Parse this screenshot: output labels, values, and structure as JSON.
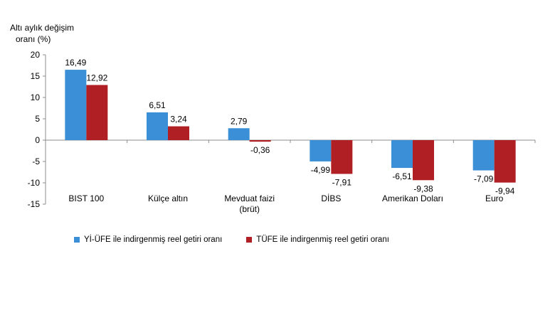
{
  "chart_data": {
    "type": "bar",
    "ylabel_lines": [
      "Altı aylık değişim",
      "oranı (%)"
    ],
    "categories": [
      [
        "BIST 100"
      ],
      [
        "Külçe altın"
      ],
      [
        "Mevduat faizi",
        "(brüt)"
      ],
      [
        "DİBS"
      ],
      [
        "Amerikan Doları"
      ],
      [
        "Euro"
      ]
    ],
    "series": [
      {
        "name": "Yİ-ÜFE ile indirgenmiş reel getiri oranı",
        "color": "#3a8fd6",
        "values": [
          16.49,
          6.51,
          2.79,
          -4.99,
          -6.51,
          -7.09
        ],
        "labels": [
          "16,49",
          "6,51",
          "2,79",
          "-4,99",
          "-6,51",
          "-7,09"
        ]
      },
      {
        "name": "TÜFE ile indirgenmiş reel getiri oranı",
        "color": "#b01f24",
        "values": [
          12.92,
          3.24,
          -0.36,
          -7.91,
          -9.38,
          -9.94
        ],
        "labels": [
          "12,92",
          "3,24",
          "-0,36",
          "-7,91",
          "-9,38",
          "-9,94"
        ]
      }
    ],
    "ylim": [
      -15,
      20
    ],
    "yticks": [
      20,
      15,
      10,
      5,
      0,
      -5,
      -10,
      -15
    ],
    "grid": false,
    "legend_position": "bottom"
  }
}
